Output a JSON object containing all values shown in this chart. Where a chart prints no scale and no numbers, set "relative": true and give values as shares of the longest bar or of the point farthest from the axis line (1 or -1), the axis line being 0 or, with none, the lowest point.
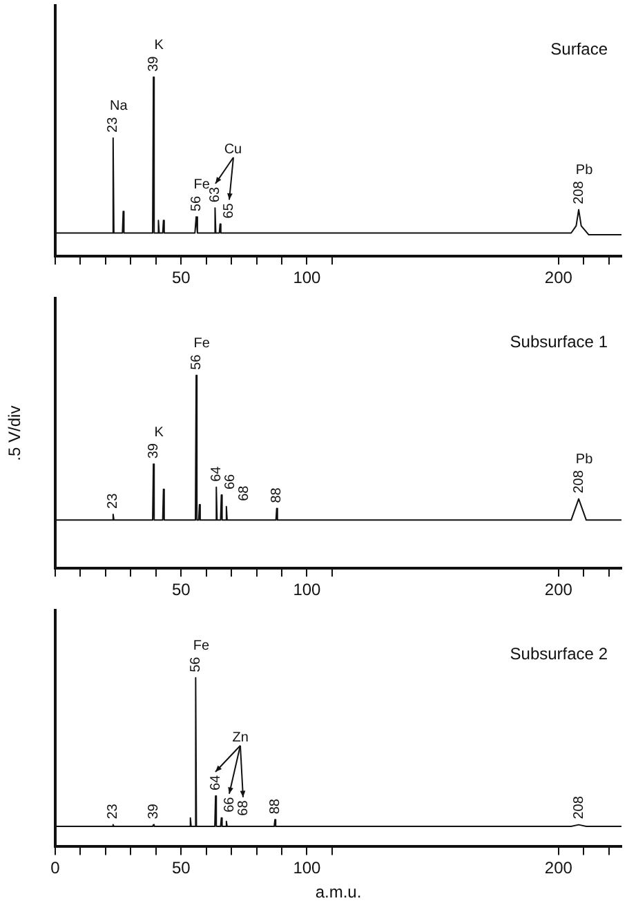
{
  "chart_data": [
    {
      "type": "line",
      "title": "Surface",
      "relative": true,
      "xlim": [
        0,
        225
      ],
      "xticks": [
        {
          "value": 0,
          "label": null
        },
        {
          "value": 10,
          "label": null
        },
        {
          "value": 20,
          "label": null
        },
        {
          "value": 30,
          "label": null
        },
        {
          "value": 40,
          "label": null
        },
        50,
        {
          "value": 60,
          "label": null
        },
        {
          "value": 70,
          "label": null
        },
        {
          "value": 80,
          "label": null
        },
        {
          "value": 90,
          "label": null
        },
        100,
        {
          "value": 110,
          "label": null
        },
        200,
        {
          "value": 210,
          "label": null
        },
        {
          "value": 220,
          "label": null
        }
      ],
      "grid": false,
      "legend": false,
      "marker": "none",
      "color": "#111111",
      "x": [
        0,
        22.7,
        23,
        23.3,
        26.7,
        27,
        27.3,
        38.7,
        39,
        39.3,
        40.7,
        41,
        41.3,
        42.7,
        43,
        43.3,
        55.5,
        56,
        56.5,
        63.2,
        63.5,
        63.8,
        65.2,
        65.5,
        65.8,
        205,
        207,
        208,
        209,
        212,
        225
      ],
      "values": [
        0.13,
        0.13,
        0.66,
        0.13,
        0.13,
        0.25,
        0.13,
        0.13,
        1,
        0.13,
        0.13,
        0.2,
        0.13,
        0.13,
        0.2,
        0.13,
        0.13,
        0.22,
        0.13,
        0.13,
        0.27,
        0.13,
        0.13,
        0.18,
        0.13,
        0.13,
        0.17,
        0.26,
        0.17,
        0.12,
        0.12
      ],
      "annotations": [
        {
          "text": "23",
          "x": 23,
          "y": 0.66
        },
        {
          "text": "Na",
          "x": 23,
          "y": 0.66
        },
        {
          "text": "39",
          "x": 39,
          "y": 1
        },
        {
          "text": "K",
          "x": 39,
          "y": 1
        },
        {
          "text": "56",
          "x": 56,
          "y": 0.22
        },
        {
          "text": "Fe",
          "x": 56,
          "y": 0.22
        },
        {
          "text": "63",
          "x": 63.5,
          "y": 0.27
        },
        {
          "text": "65",
          "x": 65.5,
          "y": 0.18
        },
        "Cu",
        {
          "text": "208",
          "x": 208,
          "y": 0.26
        },
        {
          "text": "Pb",
          "x": 208,
          "y": 0.26
        }
      ]
    },
    {
      "type": "line",
      "title": "Subsurface 1",
      "ylabel": ".5 V/div",
      "relative": true,
      "xlim": [
        0,
        225
      ],
      "xticks": [
        {
          "value": 0,
          "label": null
        },
        {
          "value": 10,
          "label": null
        },
        {
          "value": 20,
          "label": null
        },
        {
          "value": 30,
          "label": null
        },
        {
          "value": 40,
          "label": null
        },
        50,
        {
          "value": 60,
          "label": null
        },
        {
          "value": 70,
          "label": null
        },
        {
          "value": 80,
          "label": null
        },
        {
          "value": 90,
          "label": null
        },
        100,
        {
          "value": 110,
          "label": null
        },
        200,
        {
          "value": 210,
          "label": null
        },
        {
          "value": 220,
          "label": null
        }
      ],
      "grid": false,
      "legend": false,
      "marker": "none",
      "color": "#111111",
      "x": [
        0,
        22.7,
        23,
        23.3,
        38.7,
        39,
        39.3,
        42.7,
        43,
        43.3,
        55.7,
        56,
        56.3,
        57,
        57.3,
        57.6,
        63.7,
        64,
        64.3,
        65.7,
        66,
        66.3,
        67.7,
        68,
        68.3,
        87.7,
        88,
        88.3,
        205,
        208,
        211,
        225
      ],
      "values": [
        0.25,
        0.25,
        0.28,
        0.25,
        0.25,
        0.54,
        0.25,
        0.25,
        0.41,
        0.25,
        0.25,
        1,
        0.25,
        0.25,
        0.33,
        0.25,
        0.25,
        0.42,
        0.25,
        0.25,
        0.38,
        0.25,
        0.25,
        0.32,
        0.25,
        0.25,
        0.31,
        0.25,
        0.25,
        0.36,
        0.25,
        0.25
      ],
      "annotations": [
        {
          "text": "23",
          "x": 23,
          "y": 0.28
        },
        {
          "text": "39",
          "x": 39,
          "y": 0.54
        },
        {
          "text": "K",
          "x": 39,
          "y": 0.54
        },
        {
          "text": "56",
          "x": 56,
          "y": 1
        },
        {
          "text": "Fe",
          "x": 56,
          "y": 1
        },
        {
          "text": "64",
          "x": 64,
          "y": 0.42
        },
        {
          "text": "66",
          "x": 66,
          "y": 0.38
        },
        {
          "text": "68",
          "x": 68,
          "y": 0.32
        },
        {
          "text": "88",
          "x": 88,
          "y": 0.31
        },
        {
          "text": "208",
          "x": 208,
          "y": 0.36
        },
        {
          "text": "Pb",
          "x": 208,
          "y": 0.36
        }
      ]
    },
    {
      "type": "line",
      "title": "Subsurface 2",
      "xlabel": "a.m.u.",
      "relative": true,
      "xlim": [
        0,
        225
      ],
      "xticks": [
        0,
        {
          "value": 10,
          "label": null
        },
        {
          "value": 20,
          "label": null
        },
        {
          "value": 30,
          "label": null
        },
        {
          "value": 40,
          "label": null
        },
        50,
        {
          "value": 60,
          "label": null
        },
        {
          "value": 70,
          "label": null
        },
        {
          "value": 80,
          "label": null
        },
        {
          "value": 90,
          "label": null
        },
        100,
        {
          "value": 110,
          "label": null
        },
        200,
        {
          "value": 210,
          "label": null
        },
        {
          "value": 220,
          "label": null
        }
      ],
      "grid": false,
      "legend": false,
      "marker": "none",
      "color": "#111111",
      "x": [
        0,
        22.7,
        23,
        23.3,
        38.7,
        39,
        39.3,
        53.4,
        53.7,
        54,
        55.5,
        55.8,
        56.1,
        63.4,
        63.7,
        64,
        65.7,
        66,
        66.3,
        67.7,
        68,
        68.3,
        87,
        87.3,
        87.6,
        205,
        208,
        211,
        225
      ],
      "values": [
        0.12,
        0.12,
        0.13,
        0.12,
        0.12,
        0.13,
        0.12,
        0.12,
        0.17,
        0.12,
        0.12,
        1,
        0.12,
        0.12,
        0.3,
        0.12,
        0.12,
        0.17,
        0.12,
        0.12,
        0.15,
        0.12,
        0.12,
        0.16,
        0.12,
        0.12,
        0.13,
        0.12,
        0.12
      ],
      "annotations": [
        {
          "text": "23",
          "x": 23,
          "y": 0.13
        },
        {
          "text": "39",
          "x": 39,
          "y": 0.13
        },
        {
          "text": "56",
          "x": 55.8,
          "y": 1
        },
        {
          "text": "Fe",
          "x": 55.8,
          "y": 1
        },
        {
          "text": "64",
          "x": 63.7,
          "y": 0.3
        },
        {
          "text": "66",
          "x": 66,
          "y": 0.17
        },
        {
          "text": "68",
          "x": 68,
          "y": 0.15
        },
        "Zn",
        {
          "text": "88",
          "x": 87.3,
          "y": 0.16
        },
        {
          "text": "208",
          "x": 208,
          "y": 0.13
        }
      ]
    }
  ]
}
